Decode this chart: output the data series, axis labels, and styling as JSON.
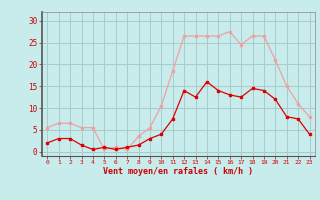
{
  "hours": [
    0,
    1,
    2,
    3,
    4,
    5,
    6,
    7,
    8,
    9,
    10,
    11,
    12,
    13,
    14,
    15,
    16,
    17,
    18,
    19,
    20,
    21,
    22,
    23
  ],
  "wind_avg": [
    2,
    3,
    3,
    1.5,
    0.5,
    1,
    0.5,
    1,
    1.5,
    3,
    4,
    7.5,
    14,
    12.5,
    16,
    14,
    13,
    12.5,
    14.5,
    14,
    12,
    8,
    7.5,
    4
  ],
  "wind_gust": [
    5.5,
    6.5,
    6.5,
    5.5,
    5.5,
    0.5,
    1,
    0.5,
    3.5,
    5.5,
    10.5,
    18.5,
    26.5,
    26.5,
    26.5,
    26.5,
    27.5,
    24.5,
    26.5,
    26.5,
    21,
    15,
    11,
    8
  ],
  "avg_color": "#dd0000",
  "gust_color": "#f0a0a0",
  "bg_color": "#c8ecec",
  "grid_color": "#a8cccc",
  "axis_color": "#cc0000",
  "ylabel_values": [
    0,
    5,
    10,
    15,
    20,
    25,
    30
  ],
  "ylim": [
    -1,
    32
  ],
  "xlabel": "Vent moyen/en rafales ( km/h )",
  "marker": "s",
  "markersize": 2.0
}
